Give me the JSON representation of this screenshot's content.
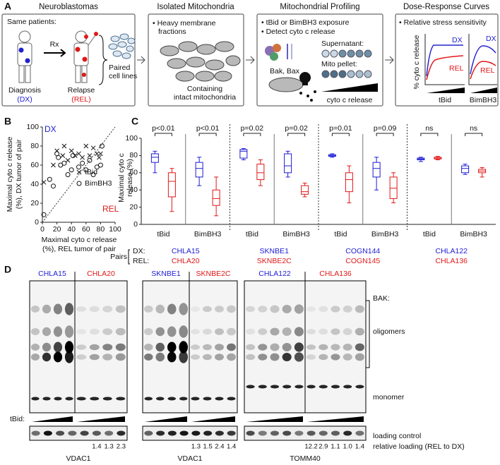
{
  "panel_a": {
    "label": "A",
    "headers": [
      "Neuroblastomas",
      "Isolated Mitochondria",
      "Mitochondrial Profiling",
      "Dose-Response Curves"
    ],
    "same_patients": "Same patients:",
    "rx": "Rx",
    "diagnosis": "Diagnosis",
    "dx_tag": "(DX)",
    "relapse": "Relapse",
    "rel_tag": "(REL)",
    "paired_cell_lines": [
      "Paired",
      "cell lines"
    ],
    "heavy_membrane": [
      "• Heavy membrane",
      "fractions"
    ],
    "intact": [
      "Containing",
      "intact mitochondria"
    ],
    "profiling_bullets": [
      "• tBid or BimBH3 exposure",
      "• Detect cyto c release"
    ],
    "bak_bax": "Bak, Bax",
    "supernatant": "Supernatant:",
    "mito_pellet": "Mito pellet:",
    "cyto_c_release": "cyto c release",
    "stress": "• Relative stress sensitivity",
    "curve_dx": "DX",
    "curve_rel": "REL",
    "curve_y": "% cyto c release",
    "curve_x": [
      "tBid",
      "BimBH3"
    ]
  },
  "panel_b": {
    "label": "B",
    "type": "scatter",
    "corner_dx": "DX",
    "corner_rel": "REL",
    "ylabel": [
      "Maximal cyto c release",
      "(%), DX tumor of pair"
    ],
    "xlabel": [
      "Maximal cyto c release",
      "(%), REL tumor of pair"
    ],
    "xlim": [
      0,
      100
    ],
    "ylim": [
      0,
      100
    ],
    "xticks": [
      0,
      20,
      40,
      60,
      80,
      100
    ],
    "yticks": [
      0,
      20,
      40,
      60,
      80,
      100
    ],
    "series": [
      {
        "name": "tBid",
        "marker": "x",
        "x": [
          2,
          15,
          20,
          28,
          30,
          35,
          40,
          45,
          50,
          55,
          60,
          65,
          70,
          75,
          78,
          80
        ],
        "y": [
          42,
          60,
          75,
          70,
          80,
          65,
          75,
          70,
          72,
          68,
          80,
          70,
          78,
          72,
          68,
          72
        ]
      },
      {
        "name": "BimBH3",
        "marker": "o",
        "x": [
          2,
          10,
          15,
          20,
          22,
          25,
          30,
          35,
          40,
          42,
          50,
          55,
          60,
          65,
          70,
          75,
          80,
          82
        ],
        "y": [
          8,
          45,
          38,
          72,
          68,
          60,
          62,
          50,
          55,
          70,
          58,
          62,
          55,
          65,
          50,
          58,
          60,
          80
        ]
      }
    ]
  },
  "panel_c": {
    "label": "C",
    "type": "box",
    "ylabel": [
      "Maximal cyto c",
      "release (%)"
    ],
    "ylim": [
      0,
      100
    ],
    "yticks": [
      0,
      20,
      40,
      60,
      80,
      100
    ],
    "pairs_label": "Pairs",
    "dx_label": "DX:",
    "rel_label": "REL:",
    "pairs": [
      {
        "dx": "CHLA15",
        "rel": "CHLA20"
      },
      {
        "dx": "SKNBE1",
        "rel": "SKNBE2C"
      },
      {
        "dx": "COGN144",
        "rel": "COGN145"
      },
      {
        "dx": "CHLA122",
        "rel": "CHLA136"
      }
    ],
    "groups": [
      {
        "name": "tBid",
        "p": "p<0.01",
        "dx": [
          60,
          72,
          78,
          82,
          85
        ],
        "rel": [
          15,
          32,
          50,
          60,
          65
        ]
      },
      {
        "name": "BimBH3",
        "p": "p<0.01",
        "dx": [
          45,
          55,
          65,
          72,
          78
        ],
        "rel": [
          10,
          22,
          30,
          40,
          55
        ]
      },
      {
        "name": "tBid",
        "p": "p=0.02",
        "dx": [
          75,
          77,
          85,
          87,
          88
        ],
        "rel": [
          45,
          52,
          60,
          70,
          75
        ]
      },
      {
        "name": "BimBH3",
        "p": "p=0.02",
        "dx": [
          55,
          60,
          68,
          82,
          85
        ],
        "rel": [
          32,
          35,
          38,
          45,
          48
        ]
      },
      {
        "name": "tBid",
        "p": "p=0.01",
        "dx": [
          78,
          79,
          80,
          81,
          82
        ],
        "rel": [
          25,
          38,
          52,
          60,
          68
        ]
      },
      {
        "name": "BimBH3",
        "p": "p=0.09",
        "dx": [
          40,
          55,
          65,
          72,
          78
        ],
        "rel": [
          25,
          30,
          42,
          55,
          60
        ]
      },
      {
        "name": "tBid",
        "p": "ns",
        "dx": [
          73,
          75,
          76,
          77,
          78
        ],
        "rel": [
          75,
          76,
          77,
          78,
          79
        ]
      },
      {
        "name": "BimBH3",
        "p": "ns",
        "dx": [
          58,
          60,
          65,
          68,
          70
        ],
        "rel": [
          55,
          60,
          62,
          64,
          66
        ]
      }
    ]
  },
  "panel_d": {
    "label": "D",
    "blots": [
      {
        "dx": "CHLA15",
        "rel": "CHLA20",
        "protein": "VDAC1",
        "loading": [
          "1.4",
          "1.3",
          "2.3"
        ]
      },
      {
        "dx": "SKNBE1",
        "rel": "SKNBE2C",
        "protein": "VDAC1",
        "loading": [
          "1.3",
          "1.5",
          "2.4",
          "1.4"
        ]
      },
      {
        "dx": "CHLA122",
        "rel": "CHLA136",
        "protein": "TOMM40",
        "loading": [
          "12.2",
          "2.9",
          "1.1",
          "1.0",
          "1.4"
        ]
      }
    ],
    "bak": "BAK:",
    "oligomers": "oligomers",
    "monomer": "monomer",
    "tbid": "tBid:",
    "loading_control": "loading control",
    "relative_loading": "relative loading (REL to DX)"
  }
}
